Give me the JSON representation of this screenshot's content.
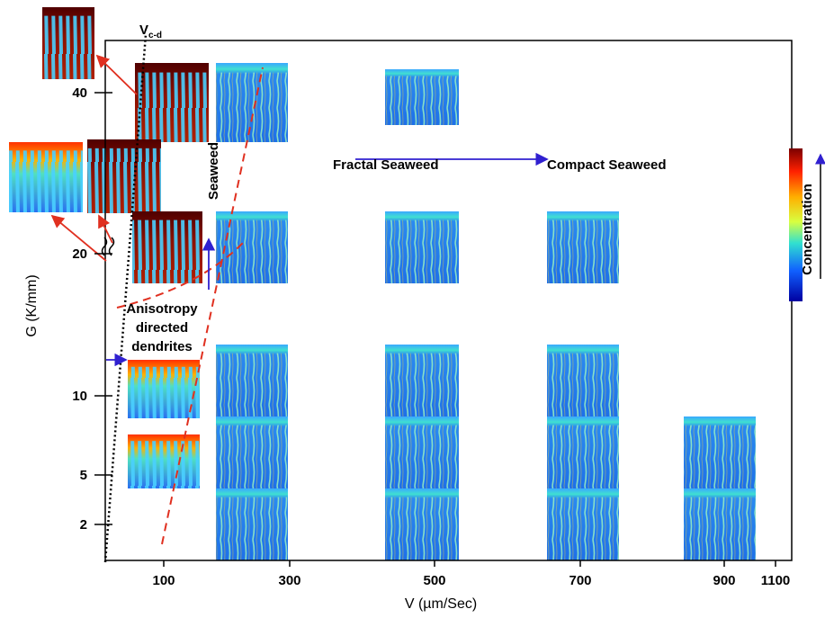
{
  "chart_data": {
    "type": "image-map",
    "x_label": "V (µm/Sec)",
    "y_label": "G (K/mm)",
    "xticks": [
      100,
      300,
      500,
      700,
      900,
      1100
    ],
    "yticks": [
      2,
      5,
      10,
      20,
      40
    ],
    "annotations": {
      "vcd": "V",
      "vcd_sub": "c-d",
      "fractal": "Fractal Seaweed",
      "compact": "Compact Seaweed",
      "seaweed": "Seaweed",
      "aniso": [
        "Anisotropy",
        "directed",
        "dendrites"
      ]
    },
    "colorbar_label": "Concentration"
  }
}
